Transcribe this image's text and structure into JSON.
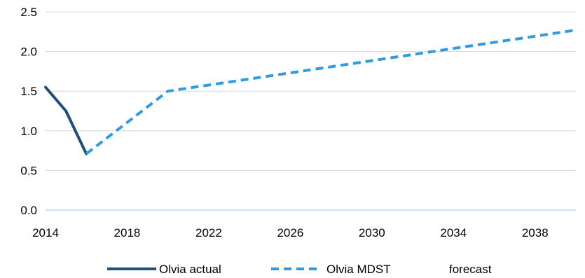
{
  "chart_data": {
    "type": "line",
    "x_ticks": [
      2014,
      2018,
      2022,
      2026,
      2030,
      2034,
      2038
    ],
    "y_ticks": [
      "0.0",
      "0.5",
      "1.0",
      "1.5",
      "2.0",
      "2.5"
    ],
    "xlim": [
      2014,
      2040
    ],
    "ylim": [
      0,
      2.5
    ],
    "grid": "horizontal",
    "legend_position": "bottom",
    "series": [
      {
        "name": "Olvia actual",
        "color": "#1f4e79",
        "style": "solid",
        "x": [
          2014,
          2015,
          2016
        ],
        "y": [
          1.55,
          1.25,
          0.71
        ]
      },
      {
        "name": "Olvia MDST",
        "color": "#2e9be6",
        "style": "dashed",
        "x": [
          2016,
          2020,
          2040
        ],
        "y": [
          0.71,
          1.5,
          2.27
        ]
      }
    ],
    "legend_extra": "forecast"
  }
}
